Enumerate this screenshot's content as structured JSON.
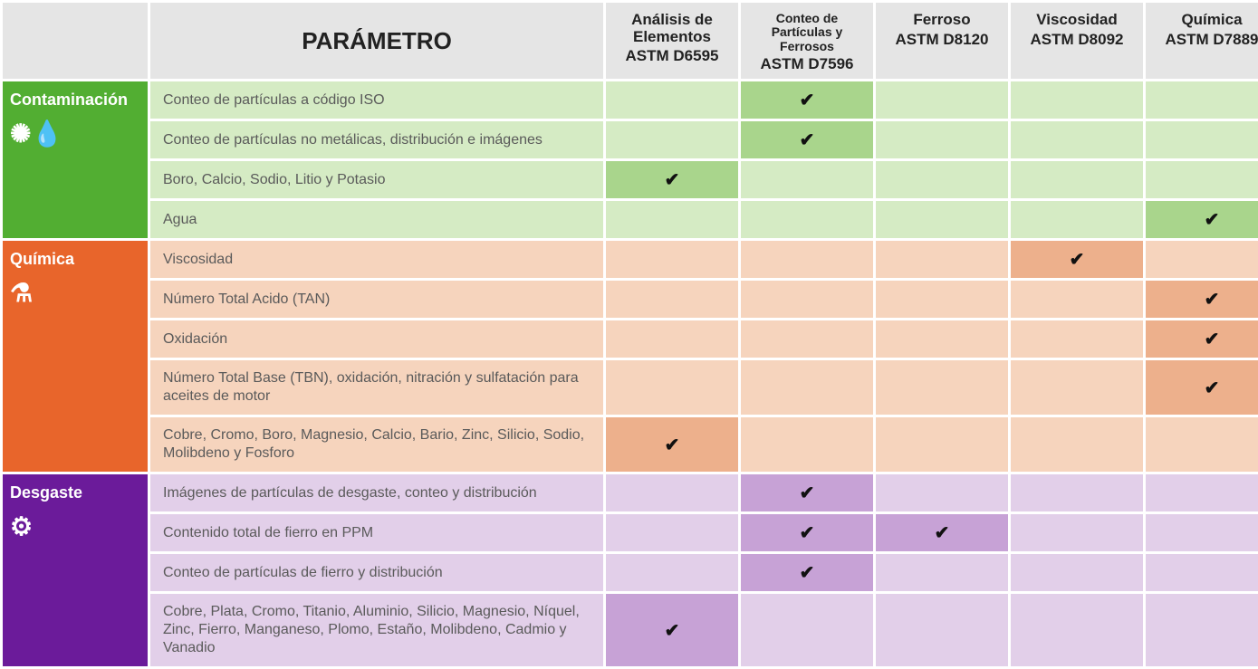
{
  "header": {
    "param_label": "PARÁMETRO",
    "columns": [
      {
        "name": "Análisis de Elementos",
        "astm": "ASTM D6595",
        "small": false
      },
      {
        "name": "Conteo de Partículas y Ferrosos",
        "astm": "ASTM D7596",
        "small": true
      },
      {
        "name": "Ferroso",
        "astm": "ASTM D8120",
        "small": false
      },
      {
        "name": "Viscosidad",
        "astm": "ASTM D8092",
        "small": false
      },
      {
        "name": "Química",
        "astm": "ASTM D7889",
        "small": false
      }
    ]
  },
  "categories": [
    {
      "id": "contaminacion",
      "label": "Contaminación",
      "icon_name": "droplet-sparkle-icon",
      "icon_glyph": "✺💧",
      "label_bg": "#52ae32",
      "row_light": "#d5ebc4",
      "row_dark": "#a9d58c",
      "rows": [
        {
          "text": "Conteo de partículas a código ISO",
          "checks": [
            false,
            true,
            false,
            false,
            false
          ]
        },
        {
          "text": "Conteo de partículas no metálicas, distribución e imágenes",
          "checks": [
            false,
            true,
            false,
            false,
            false
          ]
        },
        {
          "text": "Boro, Calcio, Sodio, Litio y Potasio",
          "checks": [
            true,
            false,
            false,
            false,
            false
          ]
        },
        {
          "text": "Agua",
          "checks": [
            false,
            false,
            false,
            false,
            true
          ]
        }
      ]
    },
    {
      "id": "quimica",
      "label": "Química",
      "icon_name": "flask-icon",
      "icon_glyph": "⚗",
      "label_bg": "#e8652b",
      "row_light": "#f6d4bd",
      "row_dark": "#edb08c",
      "rows": [
        {
          "text": "Viscosidad",
          "checks": [
            false,
            false,
            false,
            true,
            false
          ]
        },
        {
          "text": "Número Total Acido (TAN)",
          "checks": [
            false,
            false,
            false,
            false,
            true
          ]
        },
        {
          "text": "Oxidación",
          "checks": [
            false,
            false,
            false,
            false,
            true
          ]
        },
        {
          "text": "Número Total Base (TBN), oxidación, nitración y sulfatación para aceites de motor",
          "checks": [
            false,
            false,
            false,
            false,
            true
          ]
        },
        {
          "text": "Cobre, Cromo, Boro, Magnesio, Calcio, Bario, Zinc, Silicio, Sodio, Molibdeno y Fosforo",
          "checks": [
            true,
            false,
            false,
            false,
            false
          ]
        }
      ]
    },
    {
      "id": "desgaste",
      "label": "Desgaste",
      "icon_name": "gear-icon",
      "icon_glyph": "⚙",
      "label_bg": "#6b1b9a",
      "row_light": "#e2cfe9",
      "row_dark": "#c7a2d6",
      "rows": [
        {
          "text": "Imágenes de partículas de desgaste, conteo y distribución",
          "checks": [
            false,
            true,
            false,
            false,
            false
          ]
        },
        {
          "text": "Contenido total de fierro en PPM",
          "checks": [
            false,
            true,
            true,
            false,
            false
          ]
        },
        {
          "text": "Conteo de partículas de fierro y distribución",
          "checks": [
            false,
            true,
            false,
            false,
            false
          ]
        },
        {
          "text": "Cobre, Plata, Cromo, Titanio, Aluminio, Silicio, Magnesio, Níquel, Zinc, Fierro, Manganeso, Plomo, Estaño, Molibdeno, Cadmio y Vanadio",
          "checks": [
            true,
            false,
            false,
            false,
            false
          ]
        }
      ]
    }
  ],
  "checkmark_glyph": "✔",
  "colors": {
    "header_bg": "#e5e5e5",
    "text_dark": "#222222",
    "text_muted": "#5a5a5a"
  }
}
